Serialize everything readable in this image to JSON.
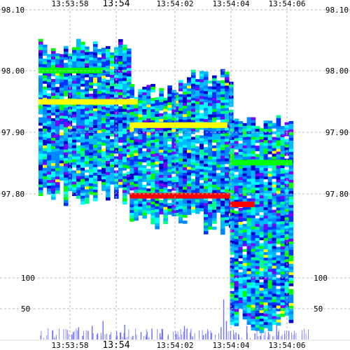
{
  "chart_data": [
    {
      "type": "heatmap",
      "title": "",
      "xlabel": "",
      "ylabel": "",
      "x_tick_labels": [
        "13:53:58",
        "13:54",
        "13:54:02",
        "13:54:04",
        "13:54:06"
      ],
      "y_tick_labels": [
        "98.10",
        "98.00",
        "97.90",
        "97.80"
      ],
      "ylim": [
        97.695,
        98.1
      ],
      "grid": true,
      "colorscale": [
        "#0000cc",
        "#0033ff",
        "#0088ff",
        "#00bbff",
        "#00ffff",
        "#00ff88",
        "#00ff00",
        "#ffff00",
        "#ff8800",
        "#ff0000"
      ],
      "bands": [
        {
          "t0": 0.0,
          "t1": 2.2,
          "low": 97.805,
          "high": 98.04
        },
        {
          "t0": 2.2,
          "t1": 4.0,
          "low": 97.756,
          "high": 97.97
        },
        {
          "t0": 4.0,
          "t1": 5.9,
          "low": 97.754,
          "high": 97.99
        },
        {
          "t0": 5.9,
          "t1": 8.2,
          "low": 97.595,
          "high": 97.92
        }
      ],
      "annotations": [
        {
          "t0": 2.2,
          "t1": 5.9,
          "price": 97.797,
          "color": "#ff0000"
        },
        {
          "t0": 5.9,
          "t1": 6.8,
          "price": 97.783,
          "color": "#ff0000"
        },
        {
          "t0": 0.0,
          "t1": 2.5,
          "price": 97.95,
          "color": "#ffff00"
        },
        {
          "t0": 5.9,
          "t1": 8.2,
          "price": 97.851,
          "color": "#00ff00"
        },
        {
          "t0": 0.0,
          "t1": 1.2,
          "price": 98.001,
          "color": "#00ff00"
        },
        {
          "t0": 2.2,
          "t1": 5.8,
          "price": 97.912,
          "color": "#ffff00"
        }
      ]
    },
    {
      "type": "bar",
      "title": "",
      "xlabel": "",
      "ylabel": "",
      "x_tick_labels": [
        "13:53:58",
        "13:54",
        "13:54:02",
        "13:54:04",
        "13:54:06"
      ],
      "y_tick_labels": [
        "100",
        "50"
      ],
      "ylim": [
        0,
        120
      ],
      "grid": true,
      "x": [
        0.05,
        0.1,
        0.3,
        0.45,
        0.65,
        0.8,
        1.0,
        1.2,
        1.45,
        1.7,
        2.0,
        2.3,
        2.6,
        2.8,
        3.0,
        3.3,
        3.6,
        3.9,
        4.2,
        4.5,
        4.9,
        5.2,
        5.55,
        5.65,
        5.75,
        5.9,
        6.2,
        6.5,
        6.8,
        7.0,
        7.3,
        7.6,
        7.9,
        8.05
      ],
      "values": [
        8,
        12,
        20,
        6,
        14,
        22,
        10,
        30,
        8,
        14,
        24,
        6,
        12,
        8,
        18,
        10,
        6,
        9,
        22,
        5,
        7,
        11,
        20,
        65,
        30,
        14,
        8,
        22,
        10,
        6,
        12,
        24,
        9,
        14
      ],
      "bar_color": "#6f6fff"
    }
  ]
}
